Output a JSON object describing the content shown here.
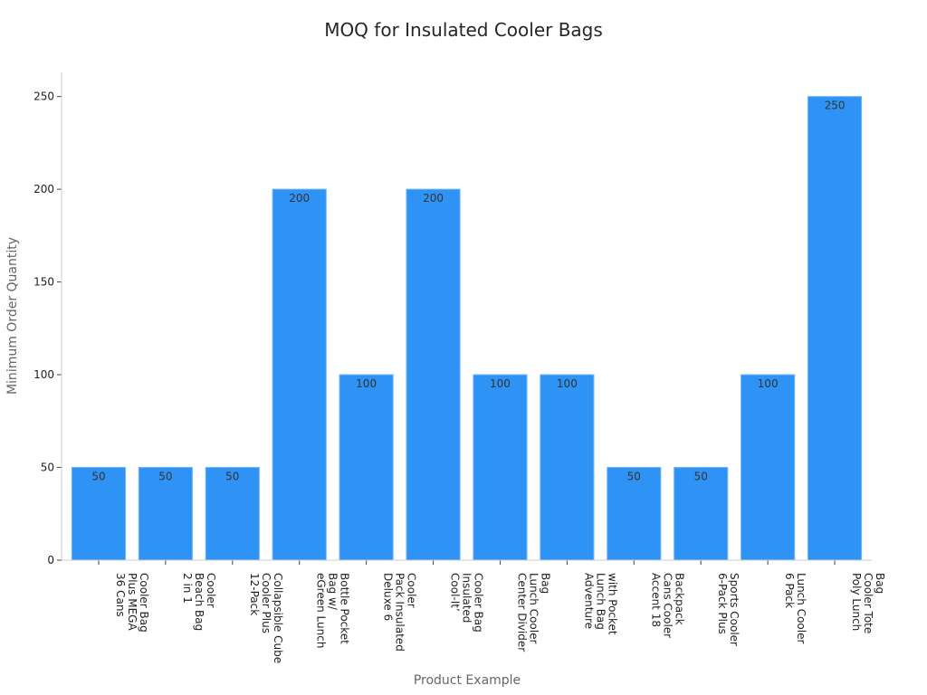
{
  "chart_data": {
    "type": "bar",
    "title": "MOQ for Insulated Cooler Bags",
    "xlabel": "Product Example",
    "ylabel": "Minimum Order Quantity",
    "ylim": [
      0,
      263
    ],
    "yticks": [
      0,
      50,
      100,
      150,
      200,
      250
    ],
    "grid": false,
    "bar_color": "#2f93f5",
    "categories": [
      [
        "36 Cans",
        "Plus MEGA",
        "Cooler Bag"
      ],
      [
        "2 in 1",
        "Beach Bag",
        "Cooler"
      ],
      [
        "12-Pack",
        "Cooler Plus",
        "Collapsible Cube"
      ],
      [
        "eGreen Lunch",
        "Bag w/",
        "Bottle Pocket"
      ],
      [
        "Deluxe 6",
        "Pack Insulated",
        "Cooler"
      ],
      [
        "Cool-It’",
        "Insulated",
        "Cooler Bag"
      ],
      [
        "Center Divider",
        "Lunch Cooler",
        "Bag"
      ],
      [
        "Adventure",
        "Lunch Bag",
        "with Pocket"
      ],
      [
        "Accent 18",
        "Cans Cooler",
        "Backpack"
      ],
      [
        "6-Pack Plus",
        "Sports Cooler"
      ],
      [
        "6 Pack",
        "Lunch Cooler"
      ],
      [
        "Poly Lunch",
        "Cooler Tote",
        "Bag"
      ]
    ],
    "values": [
      50,
      50,
      50,
      200,
      100,
      200,
      100,
      100,
      50,
      50,
      100,
      250
    ]
  }
}
